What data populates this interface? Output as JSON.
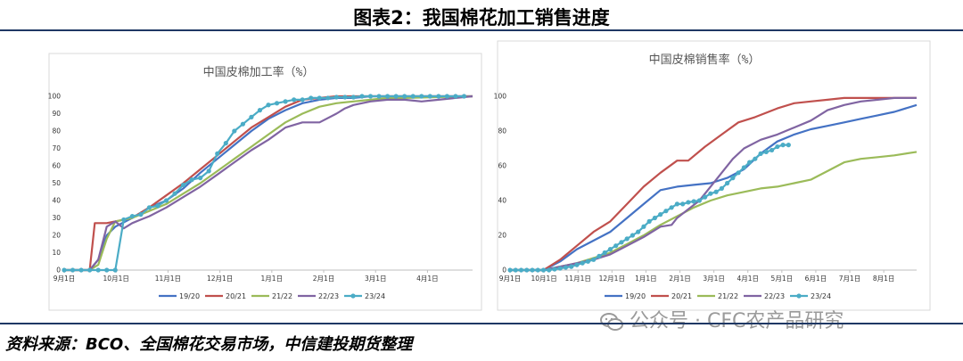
{
  "figure_title": "图表2：我国棉花加工销售进度",
  "source_note": "资料来源：BCO、全国棉花交易市场，中信建投期货整理",
  "watermark": "公众号 · CFC农产品研究",
  "colors": {
    "s1920": "#4472c4",
    "s2021": "#c0504d",
    "s2122": "#9bbb59",
    "s2223": "#8064a2",
    "s2324": "#4bacc6",
    "rule": "#1f3864"
  },
  "chart_data": [
    {
      "type": "line",
      "title": "中国皮棉加工率（%）",
      "ylim": [
        0,
        100
      ],
      "yticks": [
        0,
        10,
        20,
        30,
        40,
        50,
        60,
        70,
        80,
        90,
        100
      ],
      "x_tick_labels": [
        "9月1日",
        "10月1日",
        "11月1日",
        "12月1日",
        "1月1日",
        "2月1日",
        "3月1日",
        "4月1日"
      ],
      "x_range_days": [
        0,
        240
      ],
      "grid": false,
      "legend": "bottom",
      "series": [
        {
          "name": "19/20",
          "color_key": "s1920",
          "markers": false,
          "x": [
            0,
            15,
            20,
            25,
            30,
            40,
            50,
            60,
            70,
            80,
            90,
            100,
            110,
            120,
            130,
            140,
            150,
            160,
            170,
            180,
            240
          ],
          "y": [
            0,
            0,
            6,
            20,
            25,
            30,
            36,
            40,
            47,
            56,
            64,
            72,
            80,
            87,
            92,
            96,
            98,
            99,
            99,
            100,
            100
          ]
        },
        {
          "name": "20/21",
          "color_key": "s2021",
          "markers": false,
          "x": [
            0,
            15,
            18,
            25,
            30,
            40,
            50,
            60,
            70,
            80,
            90,
            100,
            110,
            120,
            130,
            140,
            150,
            160,
            240
          ],
          "y": [
            0,
            0,
            27,
            27,
            28,
            30,
            36,
            43,
            50,
            58,
            66,
            74,
            82,
            88,
            94,
            98,
            99,
            100,
            100
          ]
        },
        {
          "name": "21/22",
          "color_key": "s2122",
          "markers": false,
          "x": [
            0,
            15,
            20,
            25,
            30,
            40,
            50,
            60,
            70,
            80,
            90,
            100,
            110,
            120,
            130,
            140,
            150,
            160,
            170,
            180,
            190,
            200,
            240
          ],
          "y": [
            0,
            0,
            3,
            18,
            28,
            30,
            34,
            38,
            44,
            50,
            57,
            64,
            71,
            78,
            85,
            90,
            94,
            96,
            97,
            98,
            99,
            99,
            100
          ]
        },
        {
          "name": "22/23",
          "color_key": "s2223",
          "markers": false,
          "x": [
            0,
            15,
            20,
            25,
            30,
            35,
            40,
            45,
            50,
            60,
            70,
            80,
            90,
            100,
            110,
            120,
            130,
            140,
            150,
            160,
            165,
            170,
            180,
            190,
            200,
            210,
            220,
            230,
            240
          ],
          "y": [
            0,
            0,
            6,
            25,
            28,
            24,
            27,
            29,
            31,
            36,
            42,
            48,
            55,
            62,
            69,
            75,
            82,
            85,
            85,
            90,
            93,
            95,
            97,
            98,
            98,
            97,
            98,
            99,
            100
          ]
        },
        {
          "name": "23/24",
          "color_key": "s2324",
          "markers": true,
          "x": [
            0,
            5,
            10,
            15,
            20,
            25,
            30,
            35,
            40,
            45,
            50,
            55,
            60,
            65,
            70,
            75,
            80,
            85,
            90,
            95,
            100,
            105,
            110,
            115,
            120,
            125,
            130,
            135,
            140,
            145,
            150,
            155,
            160,
            165,
            170,
            175,
            180,
            185,
            190,
            195,
            200,
            205,
            210,
            215,
            220,
            225,
            230,
            235
          ],
          "y": [
            0,
            0,
            0,
            0,
            0,
            0,
            0,
            29,
            31,
            32,
            36,
            37,
            40,
            44,
            49,
            52,
            53,
            57,
            67,
            73,
            80,
            84,
            88,
            92,
            95,
            96,
            97,
            98,
            98,
            99,
            99,
            99,
            99.5,
            99.5,
            99.5,
            100,
            100,
            100,
            100,
            100,
            100,
            100,
            100,
            100,
            100,
            100,
            100,
            100
          ]
        }
      ]
    },
    {
      "type": "line",
      "title": "中国皮棉销售率（%）",
      "ylim": [
        0,
        100
      ],
      "yticks": [
        0,
        20,
        40,
        60,
        80,
        100
      ],
      "x_tick_labels": [
        "9月1日",
        "10月1日",
        "11月1日",
        "12月1日",
        "1月1日",
        "2月1日",
        "3月1日",
        "4月1日",
        "5月1日",
        "6月1日",
        "7月1日",
        "8月1日"
      ],
      "x_range_days": [
        0,
        365
      ],
      "grid": false,
      "legend": "bottom",
      "series": [
        {
          "name": "19/20",
          "color_key": "s1920",
          "markers": false,
          "x": [
            0,
            30,
            45,
            60,
            75,
            90,
            105,
            120,
            135,
            150,
            165,
            180,
            195,
            210,
            225,
            240,
            255,
            270,
            285,
            300,
            315,
            330,
            345,
            350,
            365
          ],
          "y": [
            0,
            0,
            5,
            12,
            17,
            22,
            30,
            38,
            46,
            48,
            49,
            50,
            53,
            58,
            67,
            74,
            78,
            81,
            83,
            85,
            87,
            89,
            91,
            92,
            95
          ]
        },
        {
          "name": "20/21",
          "color_key": "s2021",
          "markers": false,
          "x": [
            0,
            30,
            45,
            60,
            75,
            90,
            105,
            120,
            135,
            150,
            160,
            175,
            190,
            205,
            220,
            240,
            255,
            270,
            285,
            300,
            330,
            365
          ],
          "y": [
            0,
            0,
            6,
            14,
            22,
            28,
            38,
            48,
            56,
            63,
            63,
            71,
            78,
            85,
            88,
            93,
            96,
            97,
            98,
            99,
            99,
            99
          ]
        },
        {
          "name": "21/22",
          "color_key": "s2122",
          "markers": false,
          "x": [
            0,
            30,
            45,
            60,
            75,
            90,
            105,
            120,
            135,
            150,
            165,
            180,
            195,
            210,
            225,
            240,
            255,
            270,
            285,
            300,
            315,
            330,
            345,
            365
          ],
          "y": [
            0,
            0,
            2,
            4,
            7,
            10,
            15,
            20,
            26,
            31,
            36,
            40,
            43,
            45,
            47,
            48,
            50,
            52,
            57,
            62,
            64,
            65,
            66,
            68
          ]
        },
        {
          "name": "22/23",
          "color_key": "s2223",
          "markers": false,
          "x": [
            0,
            30,
            45,
            60,
            75,
            90,
            105,
            120,
            135,
            145,
            150,
            160,
            170,
            180,
            190,
            200,
            210,
            225,
            240,
            255,
            270,
            285,
            300,
            315,
            330,
            345,
            365
          ],
          "y": [
            0,
            0,
            2,
            4,
            6,
            9,
            14,
            19,
            25,
            26,
            30,
            35,
            40,
            48,
            56,
            64,
            70,
            75,
            78,
            82,
            86,
            92,
            95,
            97,
            98,
            99,
            99
          ]
        },
        {
          "name": "23/24",
          "color_key": "s2324",
          "markers": true,
          "x": [
            0,
            5,
            10,
            15,
            20,
            25,
            30,
            35,
            40,
            45,
            50,
            55,
            60,
            65,
            70,
            75,
            80,
            85,
            90,
            95,
            100,
            105,
            110,
            115,
            120,
            125,
            130,
            135,
            140,
            145,
            150,
            155,
            160,
            165,
            170,
            175,
            180,
            185,
            190,
            195,
            200,
            205,
            210,
            215,
            220,
            225,
            230,
            235,
            240,
            245,
            250
          ],
          "y": [
            0,
            0,
            0,
            0,
            0,
            0,
            0,
            0,
            0.5,
            1,
            1.5,
            2,
            3,
            4,
            5,
            6,
            8,
            10,
            12,
            14,
            16,
            18,
            20,
            22,
            25,
            28,
            30,
            32,
            34,
            36,
            38,
            38,
            39,
            39.5,
            40,
            42,
            44,
            45,
            47,
            50,
            53,
            56,
            59,
            62,
            64,
            67,
            68,
            69,
            71,
            72,
            72
          ]
        }
      ]
    }
  ]
}
